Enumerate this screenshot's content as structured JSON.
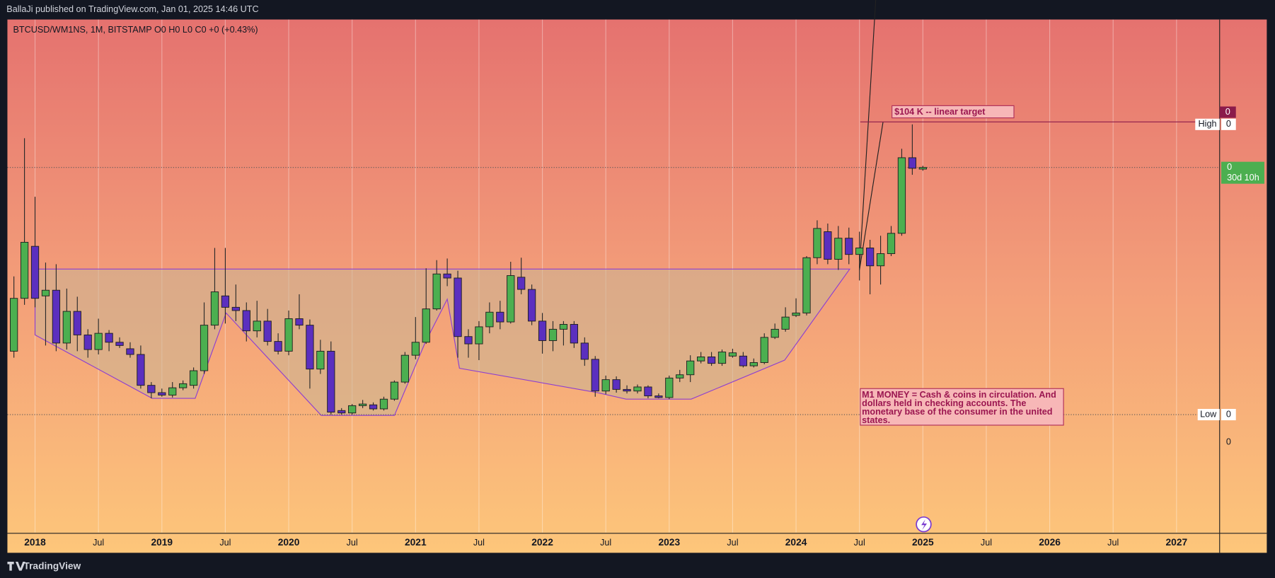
{
  "header": {
    "published": "BallaJi published on TradingView.com, Jan 01, 2025 14:46 UTC",
    "symbol_line": "BTCUSD/WM1NS, 1M, BITSTAMP  O0  H0  L0  C0  +0 (+0.43%)"
  },
  "chart_data": {
    "type": "candlestick",
    "x": [
      "2017-11",
      "2017-12",
      "2018-01",
      "2018-02",
      "2018-03",
      "2018-04",
      "2018-05",
      "2018-06",
      "2018-07",
      "2018-08",
      "2018-09",
      "2018-10",
      "2018-11",
      "2018-12",
      "2019-01",
      "2019-02",
      "2019-03",
      "2019-04",
      "2019-05",
      "2019-06",
      "2019-07",
      "2019-08",
      "2019-09",
      "2019-10",
      "2019-11",
      "2019-12",
      "2020-01",
      "2020-02",
      "2020-03",
      "2020-04",
      "2020-05",
      "2020-06",
      "2020-07",
      "2020-08",
      "2020-09",
      "2020-10",
      "2020-11",
      "2020-12",
      "2021-01",
      "2021-02",
      "2021-03",
      "2021-04",
      "2021-05",
      "2021-06",
      "2021-07",
      "2021-08",
      "2021-09",
      "2021-10",
      "2021-11",
      "2021-12",
      "2022-01",
      "2022-02",
      "2022-03",
      "2022-04",
      "2022-05",
      "2022-06",
      "2022-07",
      "2022-08",
      "2022-09",
      "2022-10",
      "2022-11",
      "2022-12",
      "2023-01",
      "2023-02",
      "2023-03",
      "2023-04",
      "2023-05",
      "2023-06",
      "2023-07",
      "2023-08",
      "2023-09",
      "2023-10",
      "2023-11",
      "2023-12",
      "2024-01",
      "2024-02",
      "2024-03",
      "2024-04",
      "2024-05",
      "2024-06",
      "2024-07",
      "2024-08",
      "2024-09",
      "2024-10",
      "2024-11",
      "2024-12",
      "2025-01"
    ],
    "open": [
      223,
      288,
      352,
      291,
      298,
      233,
      272,
      243,
      225,
      245,
      234,
      226,
      219,
      181,
      172,
      169,
      178,
      181,
      199,
      255,
      291,
      277,
      273,
      248,
      260,
      235,
      223,
      263,
      255,
      201,
      223,
      150,
      147,
      156,
      157,
      152,
      164,
      185,
      218,
      234,
      275,
      318,
      313,
      241,
      232,
      253,
      271,
      259,
      314,
      299,
      260,
      236,
      250,
      256,
      233,
      213,
      174,
      188,
      176,
      174,
      179,
      168,
      166,
      190,
      194,
      211,
      216,
      208,
      217,
      217,
      205,
      209,
      240,
      250,
      267,
      270,
      338,
      370,
      336,
      362,
      342,
      350,
      328,
      343,
      368,
      461,
      447
    ],
    "high": [
      315,
      485,
      413,
      332,
      330,
      300,
      290,
      250,
      263,
      249,
      240,
      234,
      230,
      185,
      177,
      185,
      187,
      203,
      283,
      350,
      350,
      305,
      283,
      285,
      275,
      245,
      273,
      293,
      262,
      237,
      235,
      153,
      158,
      163,
      160,
      167,
      187,
      222,
      265,
      325,
      335,
      337,
      322,
      250,
      260,
      283,
      285,
      333,
      338,
      305,
      270,
      260,
      260,
      260,
      240,
      217,
      193,
      192,
      181,
      182,
      181,
      171,
      193,
      200,
      218,
      222,
      222,
      225,
      226,
      222,
      214,
      245,
      257,
      277,
      288,
      340,
      384,
      380,
      377,
      375,
      370,
      360,
      365,
      377,
      472,
      502,
      451
    ],
    "low": [
      215,
      280,
      277,
      230,
      223,
      225,
      223,
      215,
      219,
      223,
      227,
      215,
      177,
      165,
      167,
      166,
      175,
      177,
      195,
      250,
      257,
      260,
      235,
      240,
      230,
      219,
      218,
      250,
      177,
      195,
      145,
      145,
      145,
      153,
      150,
      150,
      162,
      183,
      213,
      232,
      273,
      303,
      215,
      215,
      212,
      245,
      250,
      257,
      293,
      255,
      220,
      223,
      230,
      227,
      205,
      167,
      170,
      172,
      171,
      171,
      165,
      165,
      164,
      185,
      185,
      208,
      205,
      205,
      215,
      203,
      203,
      207,
      238,
      247,
      265,
      267,
      330,
      330,
      323,
      330,
      310,
      293,
      305,
      340,
      365,
      440,
      445
    ],
    "close": [
      288,
      357,
      288,
      298,
      233,
      272,
      243,
      225,
      245,
      234,
      230,
      219,
      181,
      172,
      169,
      178,
      183,
      199,
      255,
      296,
      277,
      273,
      248,
      260,
      235,
      223,
      263,
      255,
      201,
      223,
      148,
      147,
      156,
      158,
      152,
      164,
      185,
      218,
      234,
      275,
      318,
      313,
      241,
      232,
      253,
      271,
      259,
      316,
      299,
      260,
      236,
      250,
      256,
      233,
      213,
      174,
      188,
      176,
      174,
      179,
      168,
      166,
      190,
      194,
      211,
      216,
      208,
      222,
      221,
      205,
      209,
      240,
      250,
      265,
      270,
      338,
      374,
      336,
      362,
      342,
      350,
      328,
      343,
      368,
      461,
      448,
      449
    ],
    "up_color": "#4caf50",
    "down_color": "#5b2fbf",
    "ylim": [
      0,
      631
    ],
    "xlim": [
      "2017-10",
      "2027-05"
    ],
    "xticks": [
      {
        "value": "2018-01",
        "label": "2018"
      },
      {
        "value": "2018-07",
        "label": "Jul"
      },
      {
        "value": "2019-01",
        "label": "2019"
      },
      {
        "value": "2019-07",
        "label": "Jul"
      },
      {
        "value": "2020-01",
        "label": "2020"
      },
      {
        "value": "2020-07",
        "label": "Jul"
      },
      {
        "value": "2021-01",
        "label": "2021"
      },
      {
        "value": "2021-07",
        "label": "Jul"
      },
      {
        "value": "2022-01",
        "label": "2022"
      },
      {
        "value": "2022-07",
        "label": "Jul"
      },
      {
        "value": "2023-01",
        "label": "2023"
      },
      {
        "value": "2023-07",
        "label": "Jul"
      },
      {
        "value": "2024-01",
        "label": "2024"
      },
      {
        "value": "2024-07",
        "label": "Jul"
      },
      {
        "value": "2025-01",
        "label": "2025"
      },
      {
        "value": "2025-07",
        "label": "Jul"
      },
      {
        "value": "2026-01",
        "label": "2026"
      },
      {
        "value": "2026-07",
        "label": "Jul"
      },
      {
        "value": "2027-01",
        "label": "2027"
      }
    ],
    "grid": true,
    "annotations": {
      "target": "$104 K  -- linear target",
      "m1_note": [
        "M1 MONEY = Cash & coins in circulation. And",
        "dollars held in checking accounts. The",
        "monetary base of the consumer in the united",
        "states."
      ]
    },
    "price_scale": {
      "top_badge": 0,
      "high_label": "High",
      "high_value": 0,
      "last_price": 0,
      "countdown": "30d 10h",
      "low_label": "Low",
      "low_value": 0,
      "axis_label": 0
    }
  },
  "footer": {
    "brand": "TradingView"
  }
}
